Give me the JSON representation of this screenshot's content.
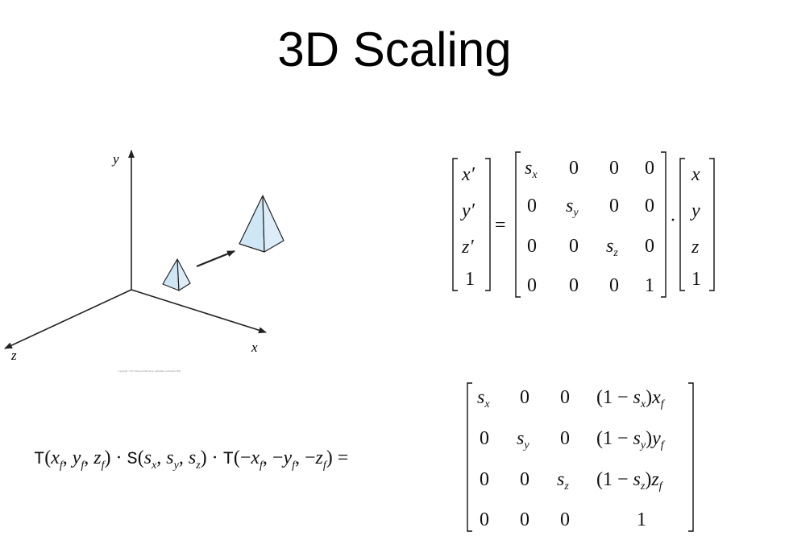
{
  "title": "3D Scaling",
  "figure": {
    "axis_labels": {
      "x": "x",
      "y": "y",
      "z": "z"
    },
    "copyright_note": "Copyright ©2011 Pearson Education, publishing as Prentice Hall",
    "pyramid_fill": "#cfe6f5",
    "line_color": "#222222"
  },
  "eq1": {
    "lhs": [
      "x′",
      "y′",
      "z′",
      "1"
    ],
    "equals": "=",
    "dot": "·",
    "matrix": [
      [
        "s_x",
        "0",
        "0",
        "0"
      ],
      [
        "0",
        "s_y",
        "0",
        "0"
      ],
      [
        "0",
        "0",
        "s_z",
        "0"
      ],
      [
        "0",
        "0",
        "0",
        "1"
      ]
    ],
    "rhs": [
      "x",
      "y",
      "z",
      "1"
    ]
  },
  "eq2": {
    "lhs_text": "T(x_f, y_f, z_f) · S(s_x, s_y, s_z) · T(−x_f, −y_f, −z_f) =",
    "matrix": [
      [
        "s_x",
        "0",
        "0",
        "(1 − s_x) x_f"
      ],
      [
        "0",
        "s_y",
        "0",
        "(1 − s_y) y_f"
      ],
      [
        "0",
        "0",
        "s_z",
        "(1 − s_z) z_f"
      ],
      [
        "0",
        "0",
        "0",
        "1"
      ]
    ]
  }
}
